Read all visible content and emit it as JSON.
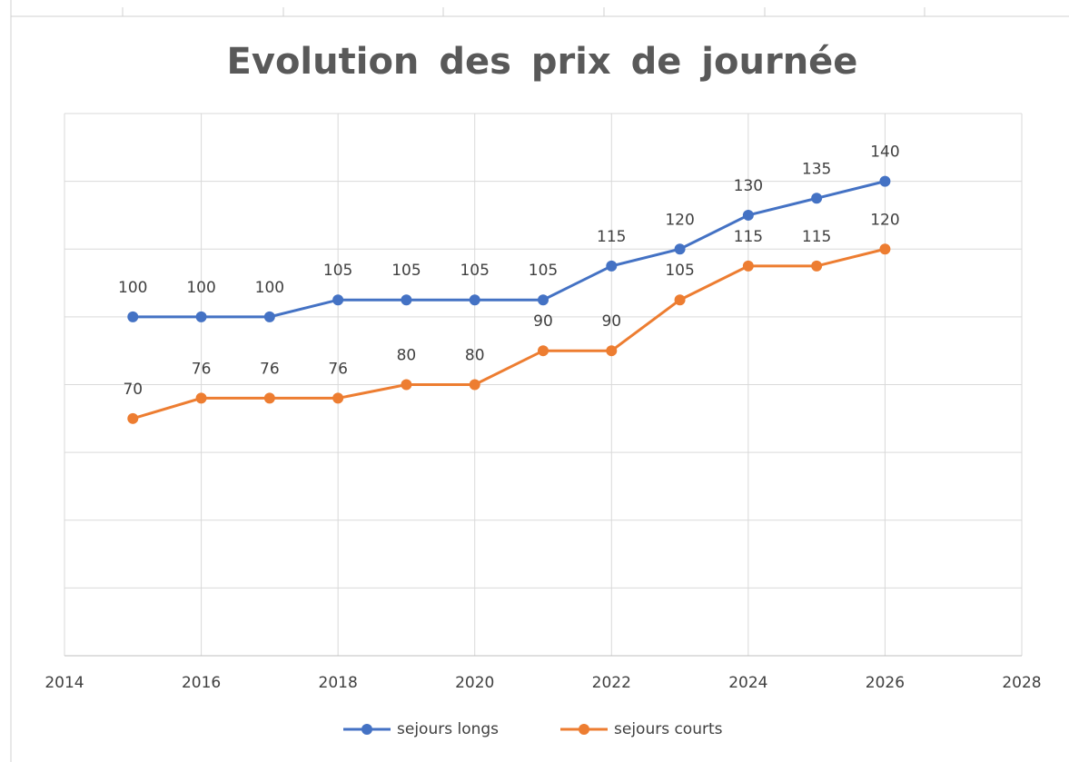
{
  "chart_data": {
    "type": "line",
    "title": "Evolution des prix de journée",
    "x": [
      2015,
      2016,
      2017,
      2018,
      2019,
      2020,
      2021,
      2022,
      2023,
      2024,
      2025,
      2026
    ],
    "series": [
      {
        "name": "sejours longs",
        "color": "#4472c4",
        "values": [
          100,
          100,
          100,
          105,
          105,
          105,
          105,
          115,
          120,
          130,
          135,
          140
        ]
      },
      {
        "name": "sejours courts",
        "color": "#ed7d31",
        "values": [
          70,
          76,
          76,
          76,
          80,
          80,
          90,
          90,
          105,
          115,
          115,
          120
        ]
      }
    ],
    "xlim": [
      2014,
      2028
    ],
    "xticks": [
      2014,
      2016,
      2018,
      2020,
      2022,
      2024,
      2026,
      2028
    ],
    "ylim": [
      0,
      160
    ],
    "yticks": [
      0,
      20,
      40,
      60,
      80,
      100,
      120,
      140,
      160
    ],
    "grid": true,
    "legend": "bottom"
  }
}
